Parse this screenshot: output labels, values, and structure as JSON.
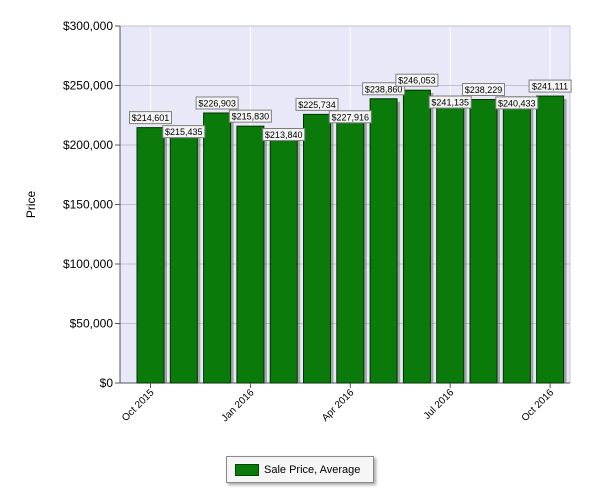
{
  "chart_data": {
    "type": "bar",
    "title": "",
    "xlabel": "",
    "ylabel": "Price",
    "ylim": [
      0,
      300000
    ],
    "yticks": [
      "$0",
      "$50,000",
      "$100,000",
      "$150,000",
      "$200,000",
      "$250,000",
      "$300,000"
    ],
    "xtick_labels": [
      "Oct 2015",
      "Jan 2016",
      "Apr 2016",
      "Jul 2016",
      "Oct 2016"
    ],
    "grid": true,
    "legend_position": "bottom-center",
    "bar_color": "#0a7a0a",
    "plot_background": "#e8e8f8",
    "series": [
      {
        "name": "Sale Price, Average",
        "values": [
          214601,
          215435,
          226903,
          215830,
          213840,
          225734,
          227916,
          238860,
          246053,
          241135,
          238229,
          240433,
          241111
        ],
        "labels": [
          "$214,601",
          "$215,435",
          "$226,903",
          "$215,830",
          "$213,840",
          "$225,734",
          "$227,916",
          "$238,860",
          "$246,053",
          "$241,135",
          "$238,229",
          "$240,433",
          "$241,111"
        ]
      }
    ]
  }
}
